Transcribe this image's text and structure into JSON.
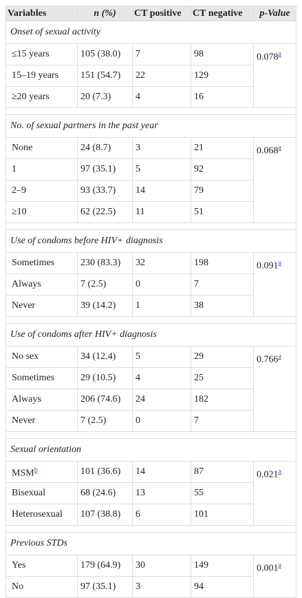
{
  "table": {
    "header": [
      "Variables",
      "n (%)",
      "CT positive",
      "CT negative",
      "p-Value"
    ],
    "sections": [
      {
        "title": "Onset of sexual activity",
        "p": "0.078",
        "p_note": "a",
        "rows": [
          [
            "≤15 years",
            "105 (38.0)",
            "7",
            "98"
          ],
          [
            "15–19 years",
            "151 (54.7)",
            "22",
            "129"
          ],
          [
            "≥20 years",
            "20 (7.3)",
            "4",
            "16"
          ]
        ]
      },
      {
        "title": "No. of sexual partners in the past year",
        "p": "0.068",
        "p_note": "a",
        "rows": [
          [
            "None",
            "24 (8.7)",
            "3",
            "21"
          ],
          [
            "1",
            "97 (35.1)",
            "5",
            "92"
          ],
          [
            "2–9",
            "93 (33.7)",
            "14",
            "79"
          ],
          [
            "≥10",
            "62 (22.5)",
            "11",
            "51"
          ]
        ]
      },
      {
        "title": "Use of condoms before HIV+ diagnosis",
        "p": "0.091",
        "p_note": "a",
        "rows": [
          [
            "Sometimes",
            "230 (83.3)",
            "32",
            "198"
          ],
          [
            "Always",
            "7 (2.5)",
            "0",
            "7"
          ],
          [
            "Never",
            "39 (14.2)",
            "1",
            "38"
          ]
        ]
      },
      {
        "title": "Use of condoms after HIV+ diagnosis",
        "p": "0.766",
        "p_note": "a",
        "rows": [
          [
            "No sex",
            "34 (12.4)",
            "5",
            "29"
          ],
          [
            "Sometimes",
            "29 (10.5)",
            "4",
            "25"
          ],
          [
            "Always",
            "206 (74.6)",
            "24",
            "182"
          ],
          [
            "Never",
            "7 (2.5)",
            "0",
            "7"
          ]
        ]
      },
      {
        "title": "Sexual orientation",
        "p": "0.021",
        "p_note": "a",
        "label_notes": {
          "0": "b"
        },
        "rows": [
          [
            "MSM",
            "101 (36.6)",
            "14",
            "87"
          ],
          [
            "Bisexual",
            "68 (24.6)",
            "13",
            "55"
          ],
          [
            "Heterosexual",
            "107 (38.8)",
            "6",
            "101"
          ]
        ]
      },
      {
        "title": "Previous STDs",
        "p": "0.001",
        "p_note": "a",
        "rows": [
          [
            "Yes",
            "179 (64.9)",
            "30",
            "149"
          ],
          [
            "No",
            "97 (35.1)",
            "3",
            "94"
          ]
        ]
      }
    ]
  }
}
